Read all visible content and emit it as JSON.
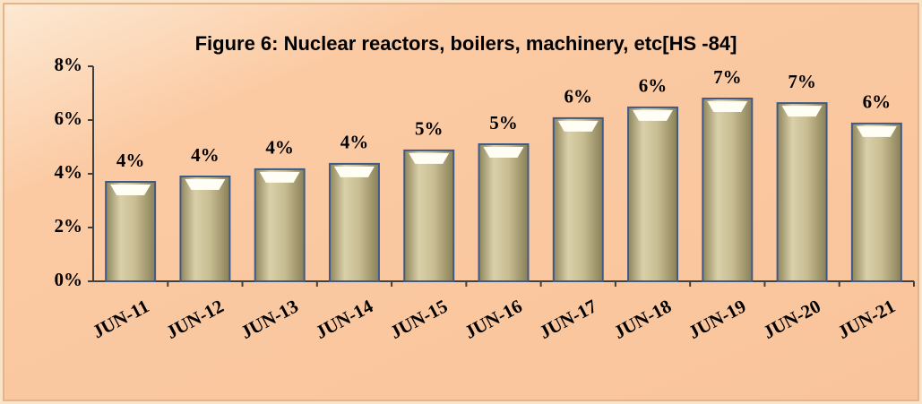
{
  "chart_data": {
    "type": "bar",
    "title": "Figure 6: Nuclear reactors, boilers, machinery, etc[HS -84]",
    "categories": [
      "JUN-11",
      "JUN-12",
      "JUN-13",
      "JUN-14",
      "JUN-15",
      "JUN-16",
      "JUN-17",
      "JUN-18",
      "JUN-19",
      "JUN-20",
      "JUN-21"
    ],
    "values": [
      3.7,
      3.9,
      4.17,
      4.37,
      4.87,
      5.1,
      6.07,
      6.47,
      6.8,
      6.63,
      5.87
    ],
    "value_labels": [
      "4%",
      "4%",
      "4%",
      "4%",
      "5%",
      "5%",
      "6%",
      "6%",
      "7%",
      "7%",
      "6%"
    ],
    "color": "#c8bd92",
    "ylim": [
      0,
      8
    ],
    "yticks": [
      {
        "value": 0,
        "label": "0%"
      },
      {
        "value": 2,
        "label": "2%"
      },
      {
        "value": 4,
        "label": "4%"
      },
      {
        "value": 6,
        "label": "6%"
      },
      {
        "value": 8,
        "label": "8%"
      }
    ],
    "grid": false
  }
}
